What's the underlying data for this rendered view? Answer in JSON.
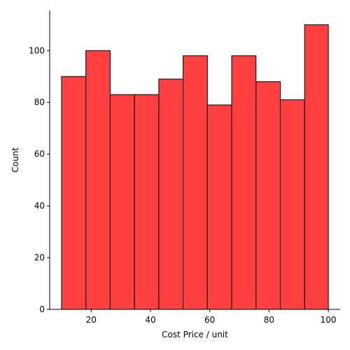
{
  "chart_data": {
    "type": "histogram",
    "title": "",
    "xlabel": "Cost Price / unit",
    "ylabel": "Count",
    "xlim": [
      6,
      104
    ],
    "ylim": [
      0,
      115.5
    ],
    "xticks": [
      20,
      40,
      60,
      80,
      100
    ],
    "yticks": [
      0,
      20,
      40,
      60,
      80,
      100
    ],
    "bin_edges": [
      10,
      18.2,
      26.4,
      34.6,
      42.8,
      51.0,
      59.2,
      67.4,
      75.6,
      83.8,
      92.0,
      100.0
    ],
    "values": [
      90,
      100,
      83,
      83,
      89,
      98,
      79,
      98,
      88,
      81,
      110
    ],
    "grid": false,
    "bar_color": "#ff0000",
    "bar_alpha": 0.75,
    "edge_color": "#000000"
  }
}
